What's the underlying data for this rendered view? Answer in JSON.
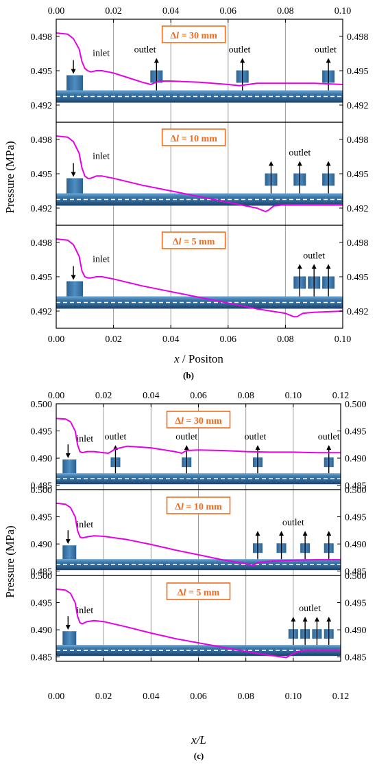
{
  "colors": {
    "curve": "#e600e6",
    "pipe": "#2e6591",
    "pipe_light": "#4f8ec2",
    "annot": "#f26a1b",
    "grid": "#9a9a9a"
  },
  "figure_b": {
    "caption": "(b)",
    "ylabel": "Pressure (MPa)",
    "xlabel_italic": "x",
    "xlabel_rest": " / Positon",
    "x_ticks": [
      "0.00",
      "0.02",
      "0.04",
      "0.06",
      "0.08",
      "0.10"
    ],
    "y_ticks": [
      "0.498",
      "0.495",
      "0.492"
    ]
  },
  "figure_c": {
    "caption": "(c)",
    "ylabel": "Pressure (MPa)",
    "xlabel": "x/L",
    "x_ticks": [
      "0.00",
      "0.02",
      "0.04",
      "0.06",
      "0.08",
      "0.10",
      "0.12"
    ],
    "y_ticks": [
      "0.500",
      "0.495",
      "0.490",
      "0.485"
    ]
  },
  "chart_data": [
    {
      "type": "line",
      "label": "(b)",
      "xlabel": "x / Positon",
      "ylabel": "Pressure (MPa)",
      "xlim": [
        0,
        0.1
      ],
      "ylim": [
        0.4905,
        0.4995
      ],
      "panels": [
        {
          "annotation": "Δl = 30 mm",
          "inlet_label": "inlet",
          "outlet_label": "outlet",
          "inlet_x": 0.006,
          "outlet_x": [
            0.035,
            0.065,
            0.095
          ],
          "outlet_label_x": [
            0.031,
            0.064,
            0.094
          ],
          "x": [
            0,
            0.004,
            0.006,
            0.008,
            0.009,
            0.01,
            0.011,
            0.012,
            0.014,
            0.016,
            0.02,
            0.025,
            0.03,
            0.033,
            0.036,
            0.04,
            0.05,
            0.06,
            0.064,
            0.07,
            0.08,
            0.09,
            0.1
          ],
          "y": [
            0.4983,
            0.4982,
            0.4978,
            0.4969,
            0.4958,
            0.4952,
            0.495,
            0.4949,
            0.495,
            0.495,
            0.4948,
            0.4944,
            0.494,
            0.4938,
            0.4941,
            0.4941,
            0.494,
            0.4938,
            0.4937,
            0.4939,
            0.4939,
            0.4939,
            0.4938
          ]
        },
        {
          "annotation": "Δl = 10 mm",
          "inlet_label": "inlet",
          "outlet_label": "outlet",
          "inlet_x": 0.006,
          "outlet_x": [
            0.075,
            0.085,
            0.095
          ],
          "outlet_label_x": [
            0.085
          ],
          "x": [
            0,
            0.004,
            0.006,
            0.008,
            0.009,
            0.01,
            0.011,
            0.012,
            0.014,
            0.016,
            0.02,
            0.03,
            0.04,
            0.05,
            0.06,
            0.07,
            0.073,
            0.074,
            0.076,
            0.08,
            0.09,
            0.1
          ],
          "y": [
            0.4983,
            0.4982,
            0.4978,
            0.4968,
            0.4955,
            0.4948,
            0.4946,
            0.4946,
            0.4948,
            0.4948,
            0.4946,
            0.494,
            0.4935,
            0.493,
            0.4925,
            0.492,
            0.4917,
            0.4918,
            0.4922,
            0.4923,
            0.4923,
            0.4923
          ]
        },
        {
          "annotation": "Δl = 5 mm",
          "inlet_label": "inlet",
          "outlet_label": "outlet",
          "inlet_x": 0.006,
          "outlet_x": [
            0.085,
            0.09,
            0.095
          ],
          "outlet_label_x": [
            0.09
          ],
          "x": [
            0,
            0.004,
            0.006,
            0.008,
            0.009,
            0.01,
            0.011,
            0.012,
            0.014,
            0.016,
            0.02,
            0.03,
            0.04,
            0.05,
            0.06,
            0.07,
            0.08,
            0.083,
            0.084,
            0.086,
            0.09,
            0.1
          ],
          "y": [
            0.4983,
            0.4982,
            0.4978,
            0.4968,
            0.4955,
            0.495,
            0.4949,
            0.4949,
            0.495,
            0.495,
            0.4948,
            0.4942,
            0.4937,
            0.4932,
            0.4927,
            0.4922,
            0.4918,
            0.4915,
            0.4915,
            0.4918,
            0.4919,
            0.492
          ]
        }
      ]
    },
    {
      "type": "line",
      "label": "(c)",
      "xlabel": "x/L",
      "ylabel": "Pressure (MPa)",
      "xlim": [
        0,
        0.12
      ],
      "ylim": [
        0.4842,
        0.5
      ],
      "panels": [
        {
          "annotation": "Δl = 30 mm",
          "inlet_label": "inlet",
          "outlet_label": "outlet",
          "inlet_x": 0.005,
          "outlet_x": [
            0.025,
            0.055,
            0.085,
            0.115
          ],
          "outlet_label_x": [
            0.025,
            0.055,
            0.084,
            0.115
          ],
          "x": [
            0,
            0.004,
            0.006,
            0.008,
            0.009,
            0.01,
            0.011,
            0.013,
            0.016,
            0.02,
            0.022,
            0.025,
            0.03,
            0.04,
            0.05,
            0.053,
            0.055,
            0.06,
            0.07,
            0.08,
            0.09,
            0.1,
            0.11,
            0.115,
            0.12
          ],
          "y": [
            0.4973,
            0.4972,
            0.4967,
            0.495,
            0.4925,
            0.4912,
            0.491,
            0.4912,
            0.4912,
            0.491,
            0.4909,
            0.4917,
            0.4922,
            0.4919,
            0.4912,
            0.4909,
            0.4914,
            0.4915,
            0.4914,
            0.4912,
            0.4911,
            0.4911,
            0.491,
            0.491,
            0.491
          ]
        },
        {
          "annotation": "Δl = 10 mm",
          "inlet_label": "inlet",
          "outlet_label": "outlet",
          "inlet_x": 0.005,
          "outlet_x": [
            0.085,
            0.095,
            0.105,
            0.115
          ],
          "outlet_label_x": [
            0.1
          ],
          "x": [
            0,
            0.004,
            0.006,
            0.008,
            0.009,
            0.01,
            0.011,
            0.013,
            0.016,
            0.02,
            0.03,
            0.04,
            0.05,
            0.06,
            0.07,
            0.08,
            0.083,
            0.085,
            0.09,
            0.1,
            0.11,
            0.12
          ],
          "y": [
            0.4975,
            0.4973,
            0.4967,
            0.495,
            0.4925,
            0.4913,
            0.4911,
            0.4913,
            0.4915,
            0.4914,
            0.4908,
            0.4899,
            0.4889,
            0.488,
            0.4871,
            0.4864,
            0.486,
            0.4866,
            0.4868,
            0.487,
            0.4871,
            0.4871
          ]
        },
        {
          "annotation": "Δl = 5 mm",
          "inlet_label": "inlet",
          "outlet_label": "outlet",
          "inlet_x": 0.005,
          "outlet_x": [
            0.1,
            0.105,
            0.11,
            0.115
          ],
          "outlet_label_x": [
            0.107
          ],
          "x": [
            0,
            0.004,
            0.006,
            0.008,
            0.009,
            0.01,
            0.011,
            0.013,
            0.016,
            0.02,
            0.03,
            0.04,
            0.05,
            0.06,
            0.07,
            0.08,
            0.09,
            0.097,
            0.1,
            0.102,
            0.105,
            0.11,
            0.12
          ],
          "y": [
            0.4975,
            0.4973,
            0.4967,
            0.495,
            0.4925,
            0.4913,
            0.4911,
            0.4915,
            0.4917,
            0.4915,
            0.4905,
            0.4894,
            0.4884,
            0.4876,
            0.4868,
            0.486,
            0.4853,
            0.4849,
            0.4856,
            0.486,
            0.4862,
            0.4862,
            0.4862
          ]
        }
      ]
    }
  ]
}
